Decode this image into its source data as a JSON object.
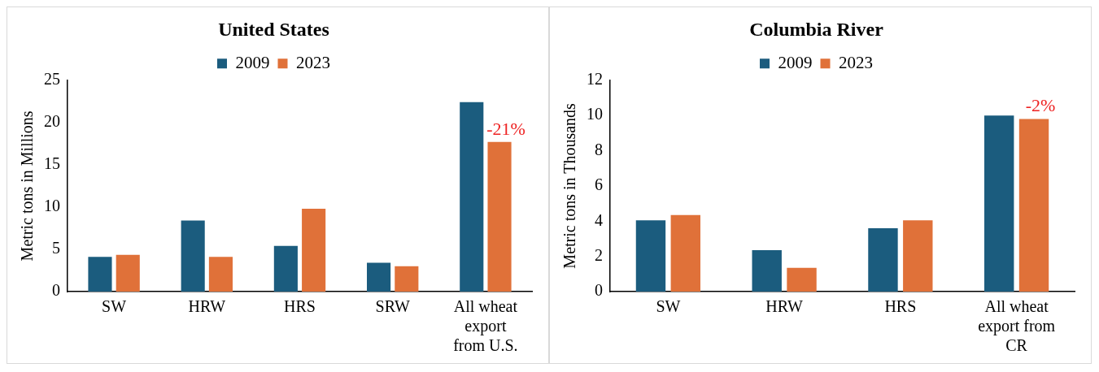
{
  "chart_data": [
    {
      "type": "bar",
      "title": "United States",
      "ylabel": "Metric tons in Millions",
      "categories": [
        "SW",
        "HRW",
        "HRS",
        "SRW",
        "All wheat export from U.S."
      ],
      "series": [
        {
          "name": "2009",
          "color": "#1b5c7e",
          "values": [
            4.1,
            8.4,
            5.4,
            3.4,
            22.4
          ]
        },
        {
          "name": "2023",
          "color": "#e07139",
          "values": [
            4.35,
            4.1,
            9.8,
            3.0,
            17.7
          ]
        }
      ],
      "ylim": [
        0,
        25
      ],
      "yticks": [
        0,
        5,
        10,
        15,
        20,
        25
      ],
      "legend": "top",
      "annotations": [
        {
          "text": "-21%",
          "x": "All wheat export from U.S.",
          "y": 17.7
        }
      ]
    },
    {
      "type": "bar",
      "title": "Columbia River",
      "ylabel": "Metric tons in Thousands",
      "categories": [
        "SW",
        "HRW",
        "HRS",
        "All wheat export from CR"
      ],
      "series": [
        {
          "name": "2009",
          "color": "#1b5c7e",
          "values": [
            4.05,
            2.35,
            3.6,
            10.0
          ]
        },
        {
          "name": "2023",
          "color": "#e07139",
          "values": [
            4.35,
            1.35,
            4.05,
            9.8
          ]
        }
      ],
      "ylim": [
        0,
        12
      ],
      "yticks": [
        0,
        2,
        4,
        6,
        8,
        10,
        12
      ],
      "legend": "top",
      "annotations": [
        {
          "text": "-2%",
          "x": "All wheat export from CR",
          "y": 9.8
        }
      ]
    }
  ]
}
